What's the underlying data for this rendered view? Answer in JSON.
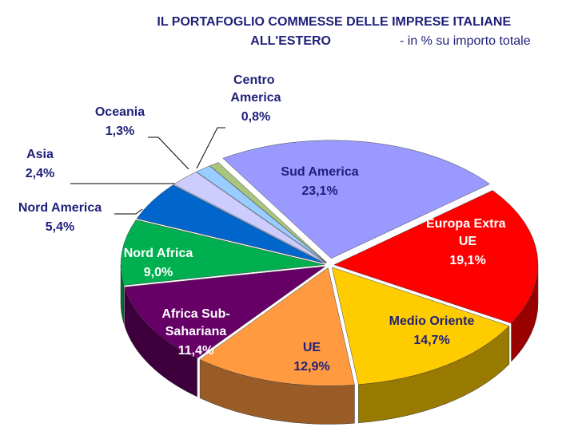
{
  "chart_data": {
    "type": "pie",
    "title": "IL PORTAFOGLIO COMMESSE DELLE IMPRESE ITALIANE ALL'ESTERO",
    "subtitle": "- in % su importo totale",
    "categories": [
      "Sud America",
      "Europa Extra UE",
      "Medio Oriente",
      "UE",
      "Africa Sub-Sahariana",
      "Nord Africa",
      "Nord America",
      "Asia",
      "Oceania",
      "Centro America"
    ],
    "values": [
      23.1,
      19.1,
      14.7,
      12.9,
      11.4,
      9.0,
      5.4,
      2.4,
      1.3,
      0.8
    ],
    "value_labels": [
      "23,1%",
      "19,1%",
      "14,7%",
      "12,9%",
      "11,4%",
      "9,0%",
      "5,4%",
      "2,4%",
      "1,3%",
      "0,8%"
    ],
    "colors": [
      "#9999ff",
      "#ff0000",
      "#ffcc00",
      "#ff9a40",
      "#660066",
      "#00b050",
      "#0066cc",
      "#ccccff",
      "#99ccff",
      "#a9c47f"
    ]
  }
}
